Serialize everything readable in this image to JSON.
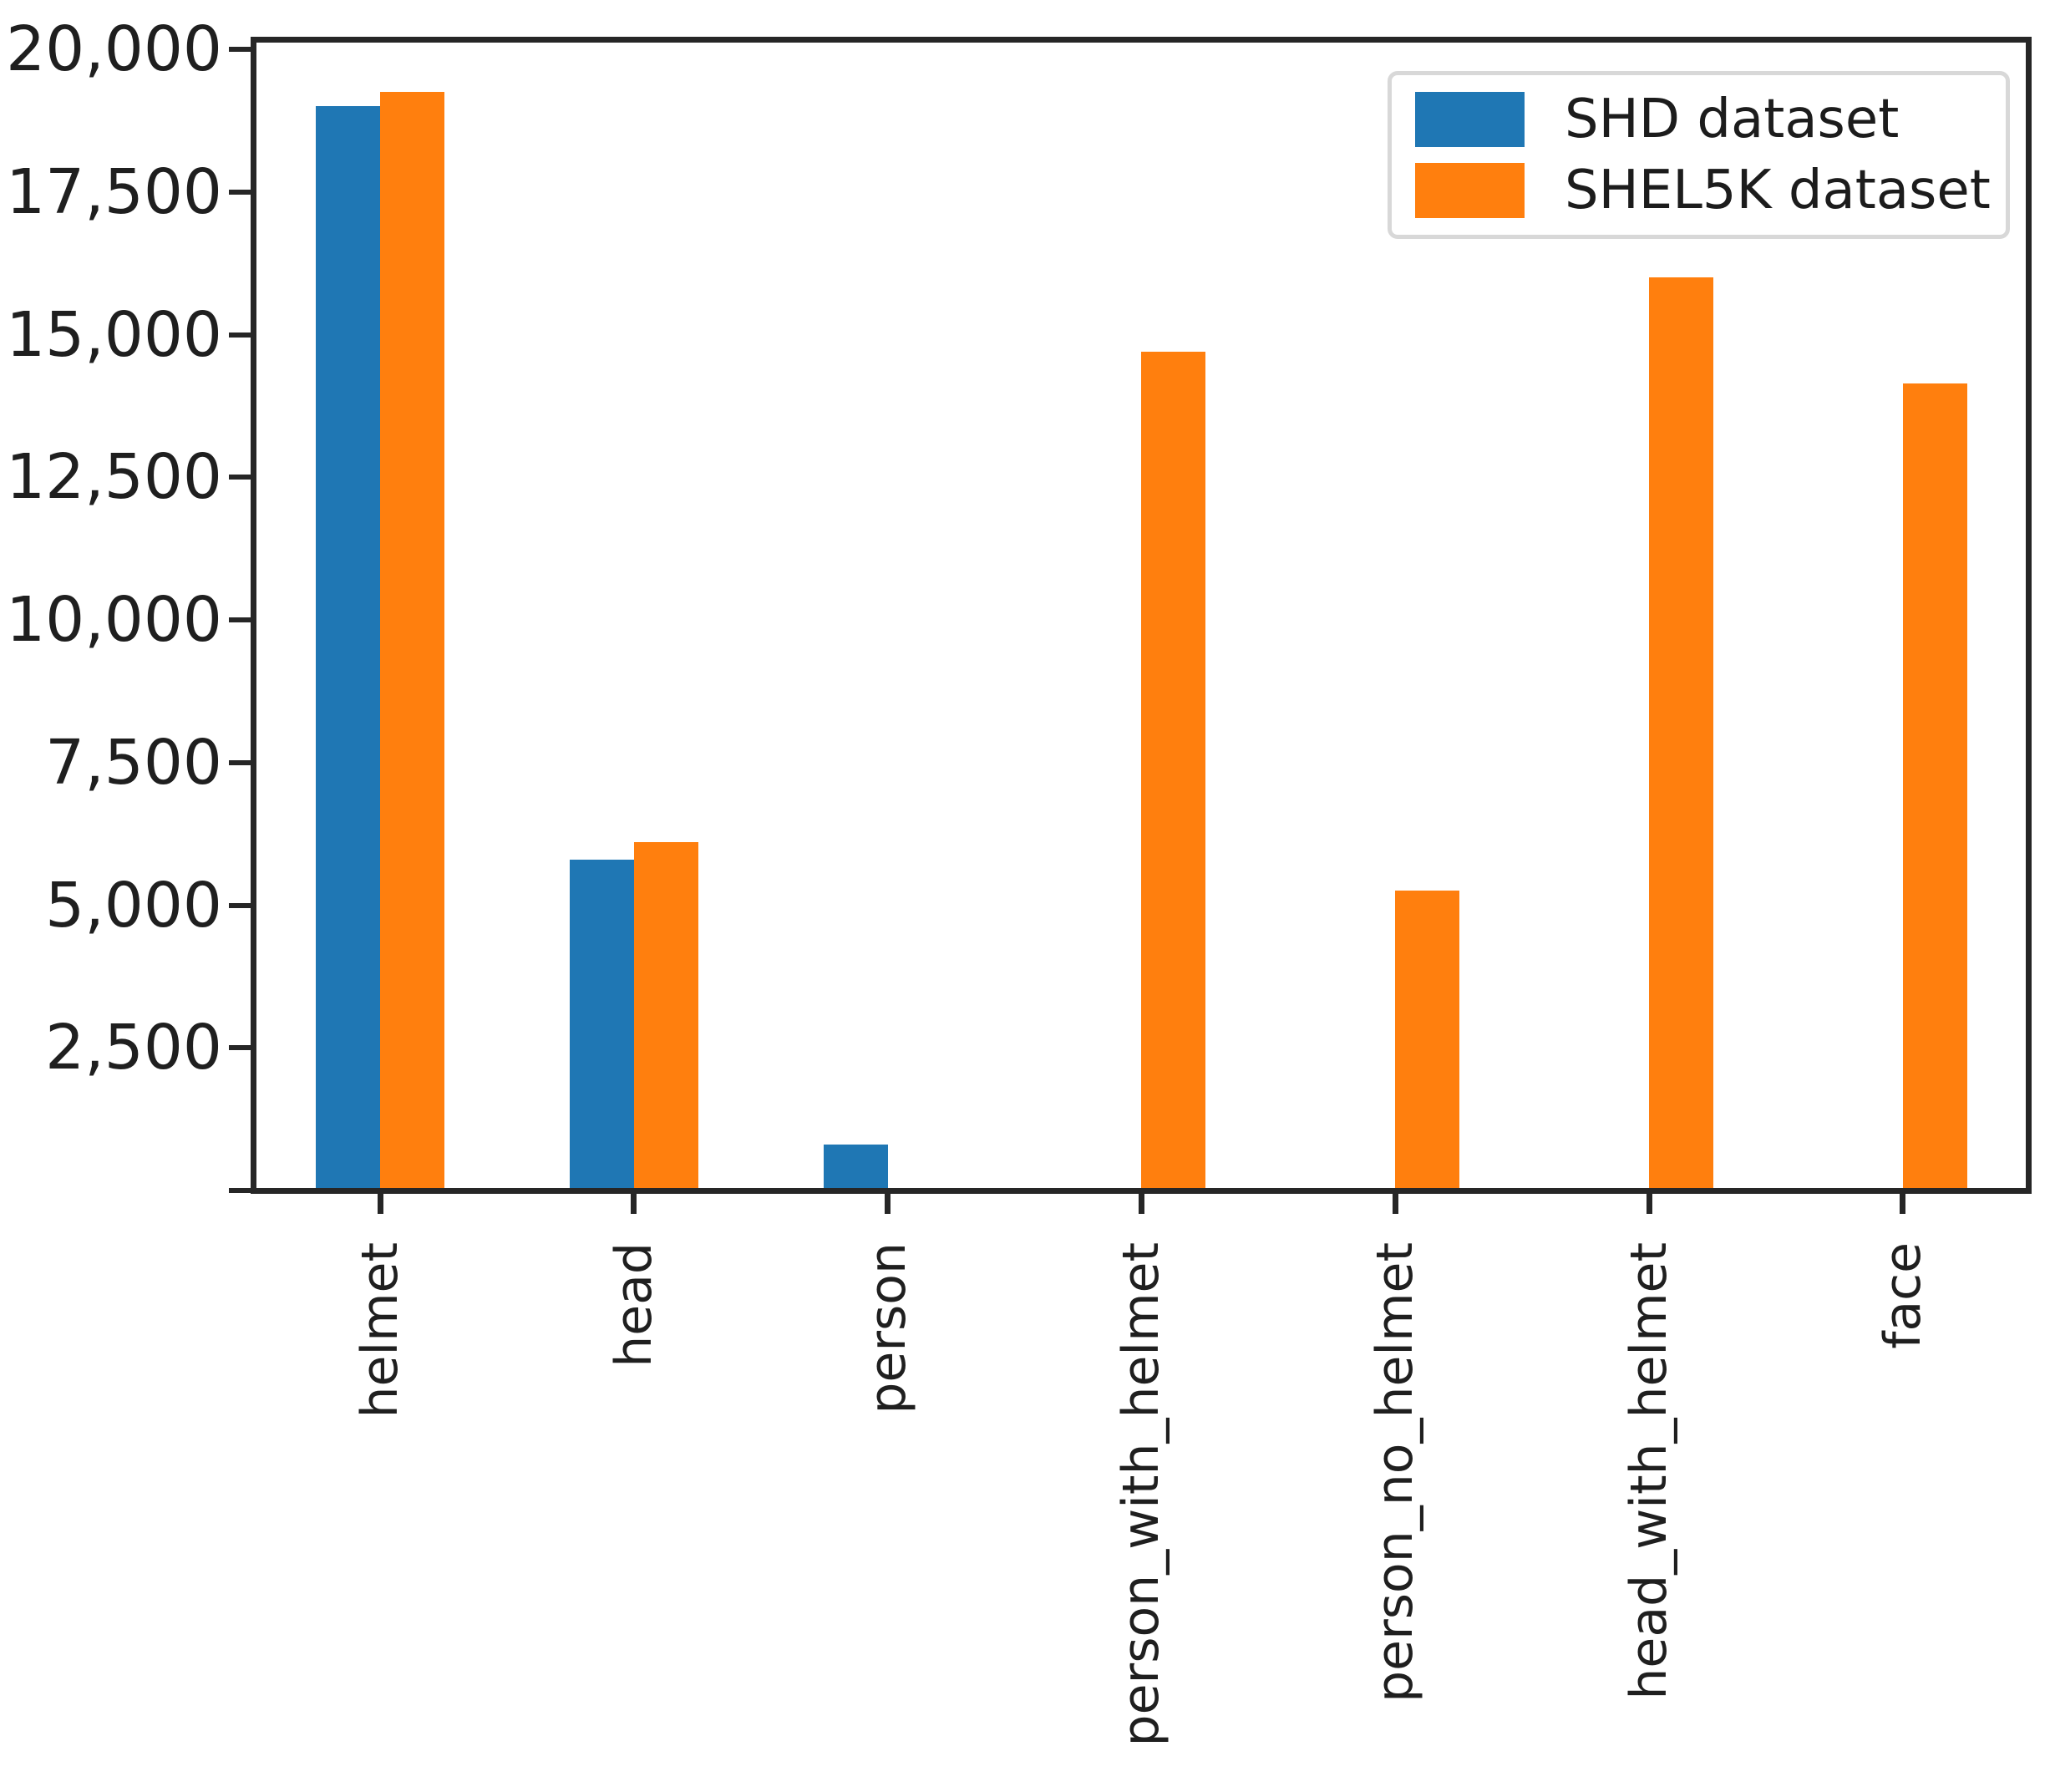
{
  "chart_data": {
    "type": "bar",
    "title": "",
    "xlabel": "",
    "ylabel": "",
    "categories": [
      "helmet",
      "head",
      "person",
      "person_with_helmet",
      "person_no_helmet",
      "head_with_helmet",
      "face"
    ],
    "series": [
      {
        "name": "SHD dataset",
        "color": "#1f77b4",
        "values": [
          19000,
          5800,
          800,
          0,
          0,
          0,
          0
        ]
      },
      {
        "name": "SHEL5K dataset",
        "color": "#ff7f0e",
        "values": [
          19250,
          6100,
          0,
          14700,
          5250,
          16000,
          14150
        ]
      }
    ],
    "ylim": [
      0,
      20000
    ],
    "yticks": [
      {
        "value": 20000,
        "label": "20,000"
      },
      {
        "value": 17500,
        "label": "17,500"
      },
      {
        "value": 15000,
        "label": "15,000"
      },
      {
        "value": 12500,
        "label": "12,500"
      },
      {
        "value": 10000,
        "label": "10,000"
      },
      {
        "value": 7500,
        "label": "7,500"
      },
      {
        "value": 5000,
        "label": "5,000"
      },
      {
        "value": 2500,
        "label": "2,500"
      },
      {
        "value": 0,
        "label": ""
      }
    ],
    "grid": false,
    "legend_position": "upper right",
    "bar_orientation": "vertical",
    "xtick_label_rotation": 90
  },
  "colors": {
    "spine": "#262626",
    "legend_border": "#d8d8d8",
    "background": "#ffffff"
  }
}
